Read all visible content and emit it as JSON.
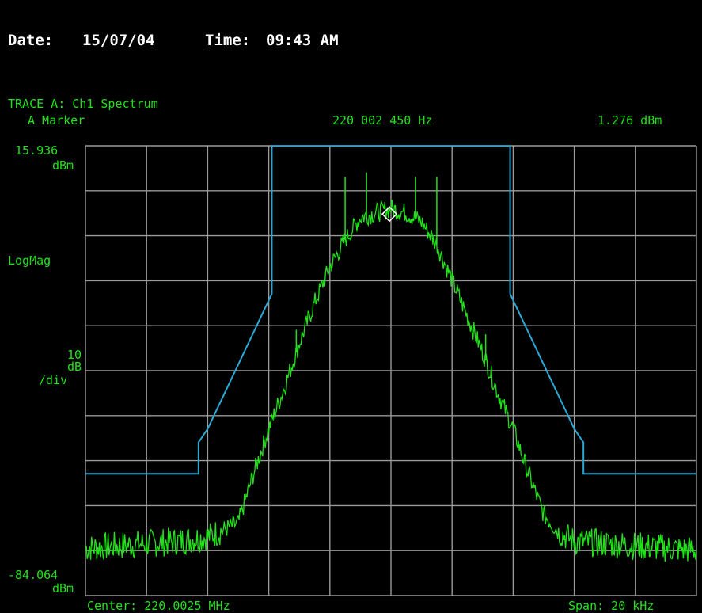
{
  "header": {
    "date_label": "Date:",
    "date": "15/07/04",
    "time_label": "Time:",
    "time": "09:43 AM"
  },
  "trace": {
    "title": "TRACE A: Ch1 Spectrum",
    "marker_label": "A Marker",
    "marker_freq": "220 002 450 Hz",
    "marker_level": "1.276 dBm"
  },
  "y_axis": {
    "top_value": "15.936",
    "top_unit": "dBm",
    "format": "LogMag",
    "scale_value": "10",
    "scale_unit": "dB",
    "scale_div": "/div",
    "bottom_value": "-84.064",
    "bottom_unit": "dBm"
  },
  "footer": {
    "center": "Center: 220.0025 MHz",
    "span": "Span: 20 kHz"
  },
  "colors": {
    "background": "#000000",
    "grid": "#9a9a9a",
    "trace": "#22e01a",
    "mask": "#2aa8d4",
    "marker": "#ffffff",
    "header_text": "#ffffff"
  },
  "chart_data": {
    "type": "line",
    "x_unit": "kHz offset from center",
    "xlim": [
      -10,
      10
    ],
    "ylim": [
      -84.064,
      15.936
    ],
    "y_scale_db_per_div": 10,
    "grid": true,
    "grid_divisions": [
      10,
      10
    ],
    "marker": {
      "x": -0.05,
      "y": 1.276
    },
    "series": [
      {
        "role": "spectrum",
        "x": [
          -10,
          -9,
          -8,
          -7,
          -6,
          -5,
          -4.5,
          -4,
          -3.5,
          -3,
          -2.5,
          -2,
          -1.5,
          -1,
          -0.5,
          0,
          0.5,
          1,
          1.5,
          2,
          2.5,
          3,
          3.5,
          4,
          4.5,
          5,
          5.5,
          6,
          7,
          8,
          9,
          10
        ],
        "y": [
          -73.5,
          -73,
          -72.5,
          -72,
          -71,
          -68,
          -57,
          -47,
          -38,
          -28,
          -19,
          -11,
          -5,
          0,
          1,
          2,
          1,
          -1,
          -6,
          -14,
          -22,
          -30,
          -39,
          -47,
          -57,
          -66,
          -70,
          -72,
          -72.5,
          -73,
          -73.5,
          -74
        ]
      },
      {
        "role": "spectrum-spurs",
        "x": [
          -1.5,
          -0.8,
          0.8,
          1.5,
          -3.1,
          3.1
        ],
        "y": [
          9,
          10,
          9,
          9,
          -25,
          -26
        ]
      },
      {
        "role": "mask",
        "x": [
          -10,
          -6.3,
          -6.3,
          -6.0,
          -3.9,
          -3.9,
          3.9,
          3.9,
          6.0,
          6.3,
          6.3,
          10
        ],
        "y": [
          -57,
          -57,
          -50,
          -47,
          -17,
          15.9,
          15.9,
          -17,
          -47,
          -50,
          -57,
          -57
        ]
      }
    ]
  }
}
